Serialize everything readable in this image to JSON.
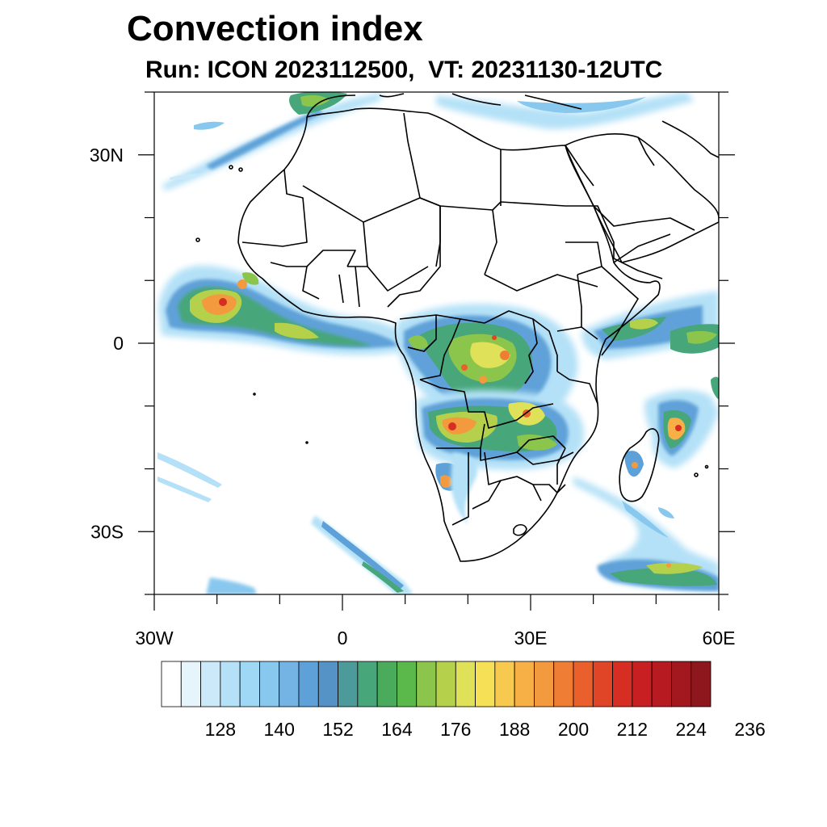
{
  "title": "Convection index",
  "subtitle": "Run: ICON 2023112500,  VT: 20231130-12UTC",
  "map": {
    "projection": "cylindrical equidistant",
    "lon_range": [
      -30,
      60
    ],
    "lat_range": [
      -40,
      40
    ],
    "x_ticks": [
      {
        "lon": -30,
        "label": "30W"
      },
      {
        "lon": 0,
        "label": "0"
      },
      {
        "lon": 30,
        "label": "30E"
      },
      {
        "lon": 60,
        "label": "60E"
      }
    ],
    "y_ticks": [
      {
        "lat": 30,
        "label": "30N"
      },
      {
        "lat": 0,
        "label": "0"
      },
      {
        "lat": -30,
        "label": "30S"
      }
    ],
    "minor_lon_step": 10,
    "minor_lat_step": 10
  },
  "colorbar": {
    "labels": [
      "128",
      "140",
      "152",
      "164",
      "176",
      "188",
      "200",
      "212",
      "224",
      "236"
    ],
    "colors": [
      "#ffffff",
      "#e6f4fc",
      "#cbe9f8",
      "#b4e1f7",
      "#9fd8f5",
      "#88c8ee",
      "#74b4e4",
      "#5ea1d8",
      "#5592c6",
      "#4c9a9a",
      "#47a67a",
      "#4aab5c",
      "#5bb84a",
      "#8cc54c",
      "#b5d14c",
      "#dfe158",
      "#f6e055",
      "#f8c94f",
      "#f6b046",
      "#f39a3e",
      "#ef7d34",
      "#e9602d",
      "#e04527",
      "#d72e24",
      "#c81f22",
      "#b71a21",
      "#a3181f",
      "#8e171d"
    ]
  },
  "regions": [
    {
      "name": "west-africa-cells",
      "level": 17
    },
    {
      "name": "guinea-coast-band",
      "level": 12
    },
    {
      "name": "congo-basin-cells",
      "level": 19
    },
    {
      "name": "southern-africa-cells",
      "level": 18
    },
    {
      "name": "east-africa-coast",
      "level": 12
    },
    {
      "name": "madagascar-cells",
      "level": 18
    },
    {
      "name": "southwest-indian-ocean-band",
      "level": 13
    },
    {
      "name": "north-atlantic-band",
      "level": 11
    },
    {
      "name": "south-atlantic-streak",
      "level": 9
    }
  ]
}
